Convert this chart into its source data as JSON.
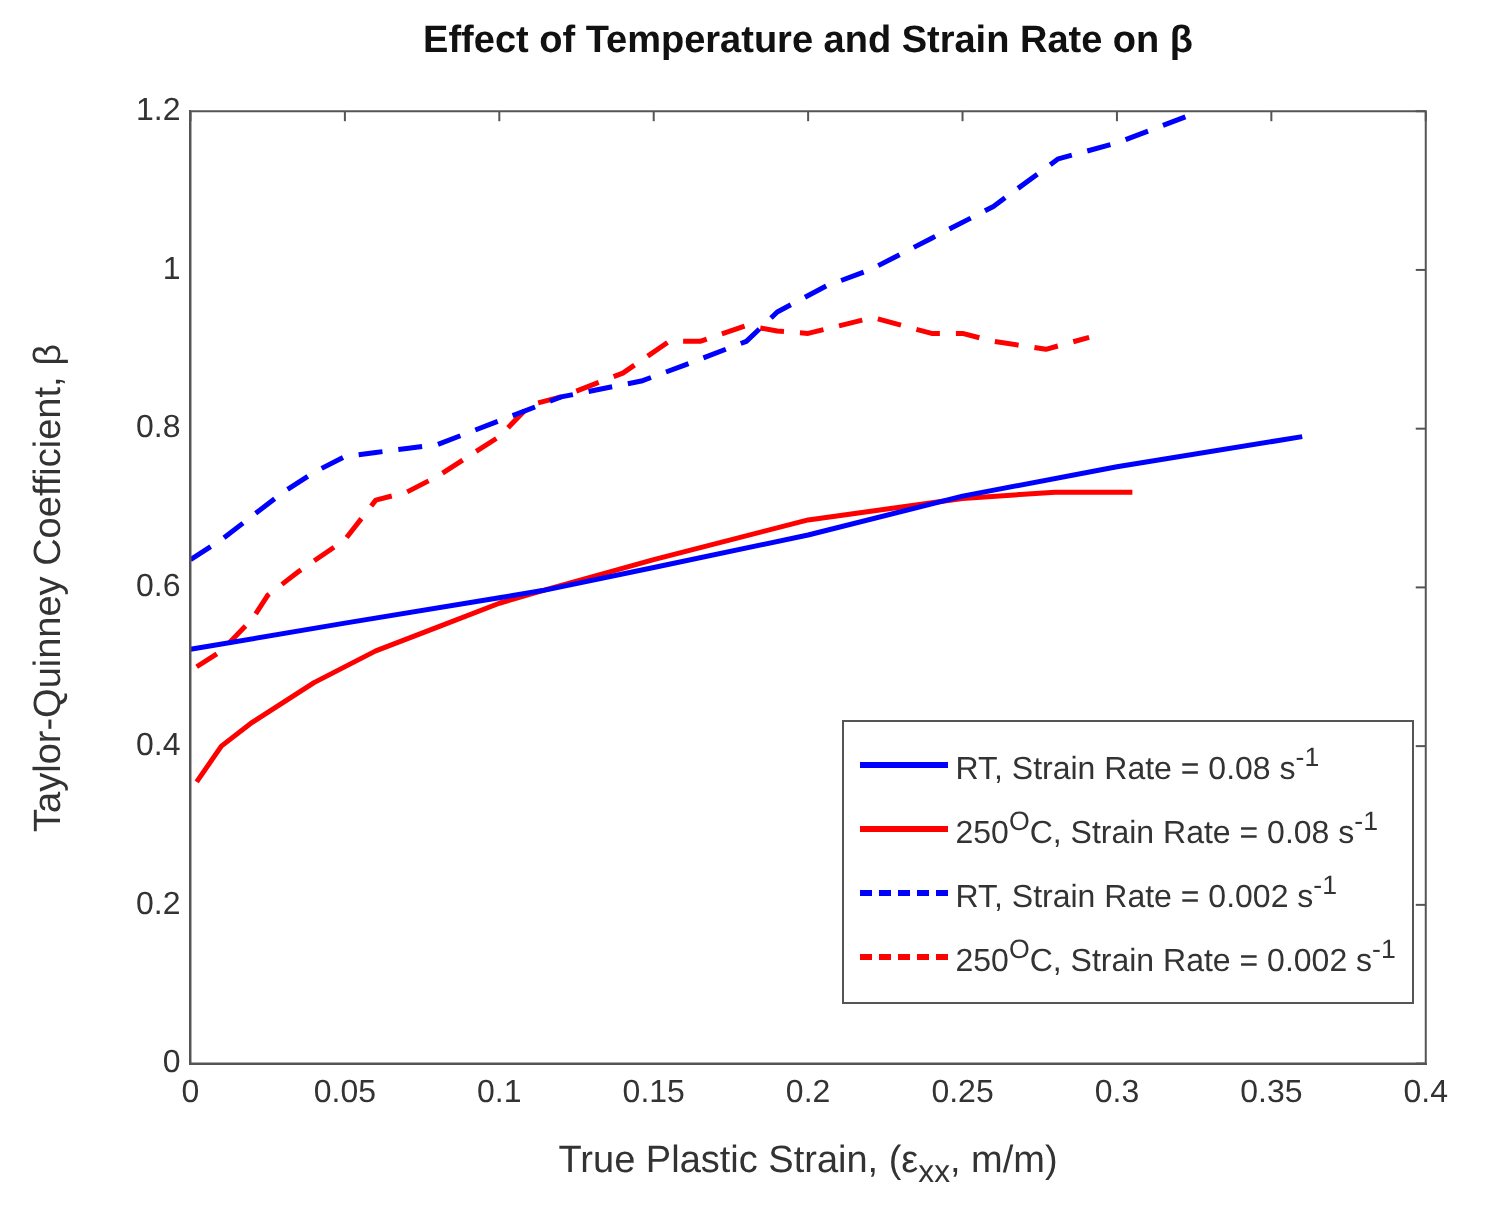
{
  "chart_data": {
    "type": "line",
    "title": "Effect of Temperature and Strain Rate on β",
    "xlabel": "True Plastic Strain, (ε$_{xx}$, m/m)",
    "ylabel": "Taylor-Quinney Coefficient, β",
    "xlim": [
      0,
      0.4
    ],
    "xticks": [
      0,
      0.05,
      0.1,
      0.15,
      0.2,
      0.25,
      0.3,
      0.35,
      0.4
    ],
    "ylim": [
      0,
      1.2
    ],
    "yticks": [
      0,
      0.2,
      0.4,
      0.6,
      0.8,
      1,
      1.2
    ],
    "grid": false,
    "legend": "bottom right",
    "marker": "none",
    "series": [
      {
        "name": "RT, Strain Rate = 0.08 s$^{-1}$",
        "color": "#0000ff",
        "line_style": "solid",
        "x": [
          0,
          0.05,
          0.1,
          0.114,
          0.15,
          0.2,
          0.25,
          0.3,
          0.36
        ],
        "values": [
          0.522,
          0.555,
          0.587,
          0.596,
          0.625,
          0.666,
          0.715,
          0.752,
          0.79
        ]
      },
      {
        "name": "250$^{O}$C, Strain Rate = 0.08 s$^{-1}$",
        "color": "#ff0000",
        "line_style": "solid",
        "x": [
          0.002,
          0.01,
          0.02,
          0.04,
          0.06,
          0.08,
          0.1,
          0.114,
          0.15,
          0.2,
          0.25,
          0.28,
          0.305
        ],
        "values": [
          0.355,
          0.4,
          0.43,
          0.48,
          0.52,
          0.55,
          0.58,
          0.596,
          0.635,
          0.685,
          0.712,
          0.72,
          0.72
        ]
      },
      {
        "name": "RT, Strain Rate = 0.002 s$^{-1}$",
        "color": "#0000ff",
        "line_style": "dashed",
        "x": [
          0,
          0.01,
          0.02,
          0.03,
          0.04,
          0.05,
          0.06,
          0.07,
          0.08,
          0.1,
          0.12,
          0.146,
          0.16,
          0.18,
          0.19,
          0.206,
          0.22,
          0.24,
          0.26,
          0.281,
          0.3,
          0.327
        ],
        "values": [
          0.635,
          0.66,
          0.69,
          0.72,
          0.745,
          0.765,
          0.77,
          0.775,
          0.78,
          0.81,
          0.84,
          0.86,
          0.88,
          0.91,
          0.947,
          0.98,
          1.0,
          1.04,
          1.08,
          1.14,
          1.16,
          1.2
        ]
      },
      {
        "name": "250$^{O}$C, Strain Rate = 0.002 s$^{-1}$",
        "color": "#ff0000",
        "line_style": "dashed",
        "x": [
          0.002,
          0.01,
          0.02,
          0.025,
          0.035,
          0.05,
          0.06,
          0.07,
          0.08,
          0.1,
          0.11,
          0.12,
          0.14,
          0.155,
          0.165,
          0.18,
          0.19,
          0.2,
          0.221,
          0.24,
          0.25,
          0.26,
          0.277,
          0.291
        ],
        "values": [
          0.5,
          0.52,
          0.56,
          0.59,
          0.62,
          0.66,
          0.71,
          0.72,
          0.74,
          0.79,
          0.83,
          0.84,
          0.87,
          0.91,
          0.91,
          0.93,
          0.923,
          0.92,
          0.94,
          0.92,
          0.92,
          0.91,
          0.9,
          0.915
        ]
      }
    ]
  }
}
